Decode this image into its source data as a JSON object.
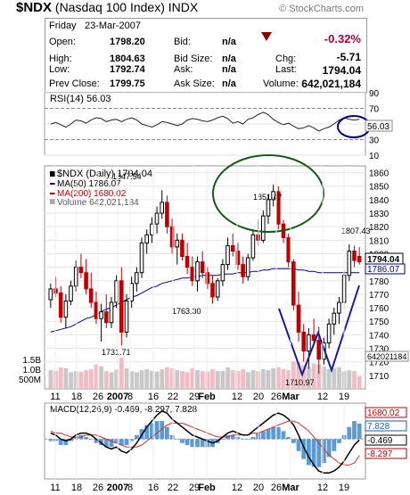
{
  "header": {
    "symbol": "$NDX",
    "name": "(Nasdaq 100 Index)",
    "exchange": "INDX",
    "brand": "© StockCharts.com"
  },
  "quote": {
    "day": "Friday",
    "date": "23-Mar-2007",
    "open_label": "Open:",
    "open": "1798.20",
    "high_label": "High:",
    "high": "1804.63",
    "low_label": "Low:",
    "low": "1792.74",
    "prev_label": "Prev Close:",
    "prev": "1799.75",
    "bid_label": "Bid:",
    "bid": "n/a",
    "bidsize_label": "Bid Size:",
    "bidsize": "n/a",
    "ask_label": "Ask:",
    "ask": "n/a",
    "asksize_label": "Ask Size:",
    "asksize": "n/a",
    "pct_change": "-0.32%",
    "chg_label": "Chg:",
    "chg": "-5.71",
    "last_label": "Last:",
    "last": "1794.04",
    "volume_label": "Volume:",
    "volume": "642,021,184",
    "down_color": "#b0003a"
  },
  "chart_data": [
    {
      "type": "line",
      "panel": "rsi",
      "legend": "RSI(14) 56.03",
      "ylim": [
        10,
        90
      ],
      "ticks": [
        10,
        30,
        50,
        70,
        90
      ],
      "last_label": "56.03",
      "values": [
        50,
        52,
        49,
        46,
        50,
        55,
        54,
        51,
        55,
        58,
        57,
        53,
        55,
        56,
        53,
        56,
        58,
        55,
        50,
        48,
        46,
        49,
        53,
        52,
        50,
        48,
        50,
        55,
        57,
        56,
        54,
        53,
        55,
        58,
        60,
        57,
        51,
        53,
        50,
        56,
        58,
        62,
        65,
        62,
        56,
        52,
        49,
        51,
        47,
        44,
        45,
        48,
        45,
        41,
        44,
        46,
        50,
        55,
        58,
        56,
        55,
        56
      ]
    },
    {
      "type": "candlestick",
      "panel": "price",
      "legend": {
        "main": "$NDX (Daily) 1794.04",
        "ma50": "MA(50) 1786.07",
        "ma200": "MA(200) 1680.02",
        "volume": "Volume 642,021,184"
      },
      "x_tick_labels": [
        "11",
        "18",
        "26",
        "2007",
        "8",
        "16",
        "22",
        "29",
        "Feb",
        "12",
        "20",
        "26",
        "Mar",
        "12",
        "19"
      ],
      "ylim": [
        1700,
        1865
      ],
      "y_ticks": [
        1710,
        1720,
        1730,
        1740,
        1750,
        1760,
        1770,
        1780,
        1790,
        1800,
        1810,
        1820,
        1830,
        1840,
        1850,
        1860
      ],
      "volume_ticks": [
        "500M",
        "1.0B",
        "1.5B"
      ],
      "annotations": [
        "1847.54",
        "1851.47",
        "1807.43",
        "1763.30",
        "1731.71",
        "1710.97"
      ],
      "axis_labels": {
        "last": "1794.04",
        "ma50": "1786.07",
        "ma200": "1680.02",
        "volume": "642021184"
      },
      "ohlc": [
        [
          1766,
          1778,
          1760,
          1774
        ],
        [
          1774,
          1783,
          1768,
          1771
        ],
        [
          1771,
          1776,
          1749,
          1753
        ],
        [
          1753,
          1770,
          1745,
          1765
        ],
        [
          1765,
          1780,
          1762,
          1776
        ],
        [
          1776,
          1795,
          1772,
          1790
        ],
        [
          1790,
          1800,
          1782,
          1786
        ],
        [
          1786,
          1796,
          1770,
          1774
        ],
        [
          1774,
          1786,
          1760,
          1764
        ],
        [
          1764,
          1772,
          1748,
          1752
        ],
        [
          1752,
          1763,
          1735,
          1757
        ],
        [
          1757,
          1770,
          1745,
          1749
        ],
        [
          1749,
          1768,
          1745,
          1764
        ],
        [
          1764,
          1784,
          1760,
          1780
        ],
        [
          1780,
          1790,
          1732,
          1742
        ],
        [
          1742,
          1770,
          1738,
          1765
        ],
        [
          1765,
          1783,
          1760,
          1778
        ],
        [
          1778,
          1790,
          1772,
          1786
        ],
        [
          1786,
          1812,
          1782,
          1808
        ],
        [
          1808,
          1818,
          1800,
          1814
        ],
        [
          1814,
          1827,
          1808,
          1822
        ],
        [
          1822,
          1835,
          1815,
          1830
        ],
        [
          1830,
          1847,
          1826,
          1838
        ],
        [
          1838,
          1843,
          1815,
          1820
        ],
        [
          1820,
          1826,
          1800,
          1805
        ],
        [
          1805,
          1815,
          1792,
          1810
        ],
        [
          1810,
          1815,
          1795,
          1798
        ],
        [
          1798,
          1808,
          1785,
          1790
        ],
        [
          1790,
          1798,
          1776,
          1780
        ],
        [
          1780,
          1798,
          1772,
          1794
        ],
        [
          1794,
          1802,
          1782,
          1786
        ],
        [
          1786,
          1790,
          1774,
          1778
        ],
        [
          1778,
          1784,
          1763,
          1768
        ],
        [
          1768,
          1782,
          1765,
          1780
        ],
        [
          1780,
          1796,
          1776,
          1792
        ],
        [
          1792,
          1812,
          1788,
          1806
        ],
        [
          1806,
          1815,
          1798,
          1802
        ],
        [
          1802,
          1808,
          1788,
          1792
        ],
        [
          1792,
          1798,
          1778,
          1783
        ],
        [
          1783,
          1800,
          1780,
          1797
        ],
        [
          1797,
          1818,
          1795,
          1814
        ],
        [
          1814,
          1825,
          1806,
          1810
        ],
        [
          1810,
          1832,
          1808,
          1828
        ],
        [
          1828,
          1844,
          1822,
          1840
        ],
        [
          1840,
          1851,
          1835,
          1846
        ],
        [
          1846,
          1850,
          1818,
          1822
        ],
        [
          1822,
          1825,
          1808,
          1812
        ],
        [
          1812,
          1815,
          1790,
          1794
        ],
        [
          1794,
          1796,
          1758,
          1762
        ],
        [
          1762,
          1772,
          1735,
          1742
        ],
        [
          1742,
          1748,
          1720,
          1728
        ],
        [
          1728,
          1745,
          1715,
          1740
        ],
        [
          1740,
          1752,
          1732,
          1736
        ],
        [
          1736,
          1746,
          1711,
          1722
        ],
        [
          1722,
          1738,
          1718,
          1734
        ],
        [
          1734,
          1752,
          1730,
          1748
        ],
        [
          1748,
          1760,
          1740,
          1756
        ],
        [
          1756,
          1768,
          1748,
          1764
        ],
        [
          1764,
          1788,
          1760,
          1784
        ],
        [
          1784,
          1807,
          1780,
          1802
        ],
        [
          1802,
          1806,
          1790,
          1795
        ],
        [
          1798,
          1805,
          1792,
          1794
        ]
      ],
      "ma50": [
        1742,
        1743,
        1744,
        1745,
        1746,
        1748,
        1750,
        1752,
        1753,
        1755,
        1757,
        1759,
        1760,
        1762,
        1764,
        1766,
        1768,
        1769,
        1771,
        1773,
        1775,
        1776,
        1778,
        1779,
        1780,
        1781,
        1782,
        1782,
        1783,
        1783,
        1784,
        1784,
        1784,
        1784,
        1785,
        1785,
        1785,
        1786,
        1786,
        1786,
        1787,
        1787,
        1788,
        1788,
        1789,
        1789,
        1789,
        1789,
        1789,
        1788,
        1788,
        1787,
        1787,
        1786,
        1786,
        1786,
        1786,
        1786,
        1786,
        1786,
        1786,
        1786
      ],
      "volume": [
        0.95,
        0.92,
        1.1,
        1.05,
        0.85,
        0.9,
        0.88,
        0.95,
        1.0,
        1.25,
        1.15,
        0.9,
        0.85,
        0.98,
        1.6,
        1.05,
        0.9,
        0.85,
        0.95,
        1.0,
        0.92,
        0.88,
        1.0,
        1.1,
        1.05,
        0.95,
        0.9,
        0.85,
        1.05,
        0.95,
        0.9,
        0.88,
        1.0,
        0.9,
        0.92,
        1.1,
        0.95,
        0.9,
        1.0,
        0.85,
        0.95,
        0.9,
        1.0,
        0.95,
        1.05,
        1.1,
        1.0,
        0.95,
        1.4,
        1.35,
        1.2,
        1.1,
        1.3,
        1.25,
        1.15,
        1.0,
        1.05,
        1.1,
        0.9,
        0.95,
        0.9,
        0.64
      ]
    },
    {
      "type": "bar",
      "panel": "macd",
      "legend": "MACD(12,26,9) -0.469, -8.297, 7.828",
      "x_tick_labels": [
        "11",
        "18",
        "26",
        "2007",
        "8",
        "16",
        "22",
        "29",
        "Feb",
        "12",
        "20",
        "26",
        "Mar",
        "12",
        "19"
      ],
      "axis_labels": [
        "1680.02",
        "7.828",
        "-0.469",
        "-8.297"
      ],
      "macd": [
        3,
        2,
        0,
        -1,
        0,
        2,
        3,
        3,
        2,
        0,
        -2,
        -4,
        -5,
        -4,
        -6,
        -7,
        -5,
        -2,
        2,
        6,
        9,
        12,
        14,
        13,
        10,
        8,
        6,
        4,
        2,
        1,
        0,
        -1,
        -2,
        -1,
        1,
        3,
        4,
        3,
        2,
        2,
        4,
        6,
        8,
        10,
        12,
        13,
        12,
        10,
        7,
        2,
        -4,
        -9,
        -13,
        -16,
        -17,
        -17,
        -16,
        -14,
        -11,
        -7,
        -3,
        -0.469
      ],
      "signal": [
        4,
        3,
        3,
        2,
        1,
        1,
        1,
        2,
        2,
        2,
        1,
        0,
        -1,
        -2,
        -3,
        -4,
        -4,
        -4,
        -3,
        -1,
        1,
        3,
        5,
        7,
        8,
        8,
        8,
        7,
        6,
        5,
        4,
        3,
        2,
        1,
        1,
        1,
        2,
        2,
        2,
        2,
        3,
        3,
        4,
        5,
        6,
        7,
        8,
        9,
        9,
        8,
        6,
        4,
        1,
        -2,
        -5,
        -8,
        -10,
        -12,
        -13,
        -13,
        -12,
        -8.297
      ],
      "histogram": [
        -1,
        -1,
        -3,
        -3,
        -1,
        1,
        2,
        1,
        0,
        -2,
        -3,
        -4,
        -4,
        -2,
        -3,
        -3,
        -1,
        2,
        5,
        7,
        8,
        9,
        9,
        6,
        2,
        0,
        -2,
        -3,
        -4,
        -4,
        -4,
        -4,
        -4,
        -2,
        0,
        2,
        2,
        1,
        0,
        0,
        1,
        3,
        4,
        5,
        6,
        6,
        4,
        1,
        -2,
        -6,
        -10,
        -13,
        -14,
        -14,
        -12,
        -9,
        -6,
        -2,
        2,
        6,
        9,
        7.828
      ]
    }
  ]
}
